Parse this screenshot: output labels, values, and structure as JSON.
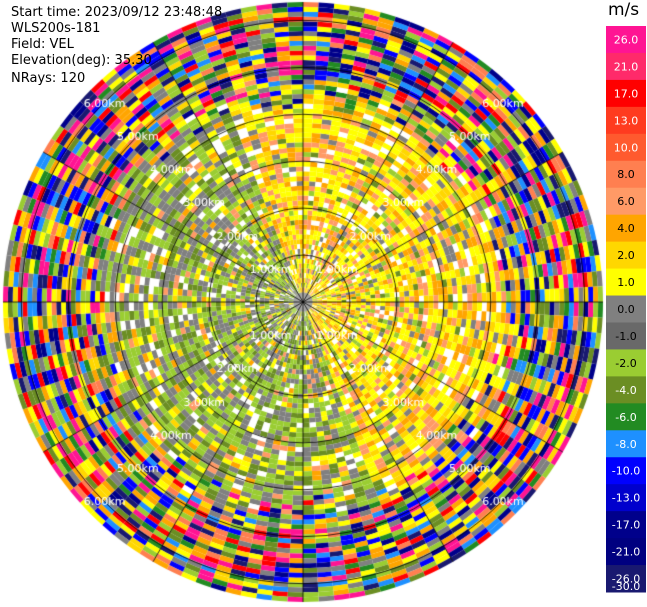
{
  "header": {
    "start_time": "Start time: 2023/09/12 23:48:48",
    "instrument": "WLS200s-181",
    "field": "Field: VEL",
    "elevation": "Elevation(deg): 35.30",
    "nrays": "NRays: 120"
  },
  "colorbar": {
    "unit": "m/s",
    "ticks": [
      "26.0",
      "21.0",
      "17.0",
      "13.0",
      "10.0",
      "8.0",
      "6.0",
      "4.0",
      "2.0",
      "1.0",
      "0.0",
      "-1.0",
      "-2.0",
      "-4.0",
      "-6.0",
      "-8.0",
      "-10.0",
      "-13.0",
      "-17.0",
      "-21.0",
      "-26.0",
      "-30.0"
    ],
    "colors": [
      "#ff1493",
      "#ff2a6a",
      "#ff0000",
      "#ff3b1f",
      "#ff5a2e",
      "#ff7f50",
      "#ff9a66",
      "#ffa500",
      "#ffd700",
      "#ffff00",
      "#808080",
      "#696969",
      "#9acd32",
      "#6b8e23",
      "#228b22",
      "#1e90ff",
      "#0000ff",
      "#0000cd",
      "#00008b",
      "#000080",
      "#191970"
    ]
  },
  "chart_data": {
    "type": "heatmap",
    "subtype": "radar PPI (velocity)",
    "field": "VEL",
    "units": "m/s",
    "nrays": 120,
    "elevation_deg": 35.3,
    "range_rings_km": [
      1.0,
      2.0,
      3.0,
      4.0,
      5.0,
      6.0
    ],
    "ring_labels": [
      "1.00km",
      "2.00km",
      "3.00km",
      "4.00km",
      "5.00km",
      "6.00km"
    ],
    "color_scale_min": -30.0,
    "color_scale_max": 26.0,
    "pattern_notes": "Positive (yellow) velocities to the N/E/SE quadrants near center, negative (green) to the W/SW; outer ranges (beyond ~4.5 km) noisy with full-spectrum colors."
  }
}
